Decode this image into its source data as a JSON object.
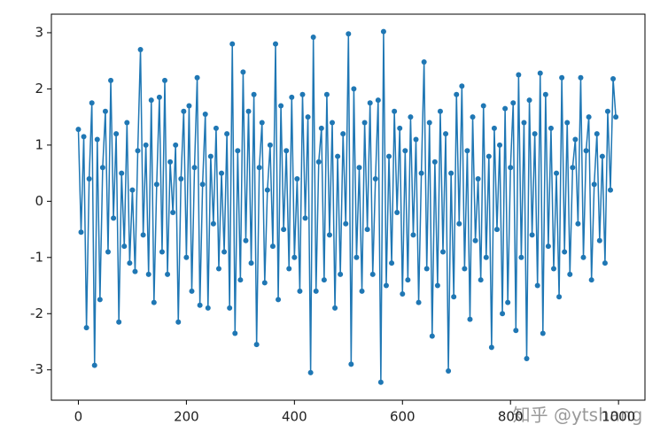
{
  "chart_data": {
    "type": "line",
    "x": [
      0,
      5,
      10,
      15,
      20,
      25,
      30,
      35,
      40,
      45,
      50,
      55,
      60,
      65,
      70,
      75,
      80,
      85,
      90,
      95,
      100,
      105,
      110,
      115,
      120,
      125,
      130,
      135,
      140,
      145,
      150,
      155,
      160,
      165,
      170,
      175,
      180,
      185,
      190,
      195,
      200,
      205,
      210,
      215,
      220,
      225,
      230,
      235,
      240,
      245,
      250,
      255,
      260,
      265,
      270,
      275,
      280,
      285,
      290,
      295,
      300,
      305,
      310,
      315,
      320,
      325,
      330,
      335,
      340,
      345,
      350,
      355,
      360,
      365,
      370,
      375,
      380,
      385,
      390,
      395,
      400,
      405,
      410,
      415,
      420,
      425,
      430,
      435,
      440,
      445,
      450,
      455,
      460,
      465,
      470,
      475,
      480,
      485,
      490,
      495,
      500,
      505,
      510,
      515,
      520,
      525,
      530,
      535,
      540,
      545,
      550,
      555,
      560,
      565,
      570,
      575,
      580,
      585,
      590,
      595,
      600,
      605,
      610,
      615,
      620,
      625,
      630,
      635,
      640,
      645,
      650,
      655,
      660,
      665,
      670,
      675,
      680,
      685,
      690,
      695,
      700,
      705,
      710,
      715,
      720,
      725,
      730,
      735,
      740,
      745,
      750,
      755,
      760,
      765,
      770,
      775,
      780,
      785,
      790,
      795,
      800,
      805,
      810,
      815,
      820,
      825,
      830,
      835,
      840,
      845,
      850,
      855,
      860,
      865,
      870,
      875,
      880,
      885,
      890,
      895,
      900,
      905,
      910,
      915,
      920,
      925,
      930,
      935,
      940,
      945,
      950,
      955,
      960,
      965,
      970,
      975,
      980,
      985,
      990,
      995
    ],
    "series": [
      {
        "color": "#1f77b4",
        "values": [
          1.28,
          -0.55,
          1.15,
          -2.25,
          0.4,
          1.75,
          -2.92,
          1.1,
          -1.75,
          0.6,
          1.6,
          -0.9,
          2.15,
          -0.3,
          1.2,
          -2.15,
          0.5,
          -0.8,
          1.4,
          -1.1,
          0.2,
          -1.25,
          0.9,
          2.7,
          -0.6,
          1.0,
          -1.3,
          1.8,
          -1.8,
          0.3,
          1.85,
          -0.9,
          2.15,
          -1.3,
          0.7,
          -0.2,
          1.0,
          -2.15,
          0.4,
          1.6,
          -1.0,
          1.7,
          -1.6,
          0.6,
          2.2,
          -1.85,
          0.3,
          1.55,
          -1.9,
          0.8,
          -0.4,
          1.3,
          -1.2,
          0.5,
          -0.9,
          1.2,
          -1.9,
          2.8,
          -2.35,
          0.9,
          -1.4,
          2.3,
          -0.7,
          1.6,
          -1.1,
          1.9,
          -2.55,
          0.6,
          1.4,
          -1.45,
          0.2,
          1.0,
          -0.8,
          2.8,
          -1.75,
          1.7,
          -0.5,
          0.9,
          -1.2,
          1.85,
          -1.0,
          0.4,
          -1.6,
          1.9,
          -0.3,
          1.5,
          -3.05,
          2.92,
          -1.6,
          0.7,
          1.3,
          -1.4,
          1.9,
          -0.6,
          1.4,
          -1.9,
          0.8,
          -1.3,
          1.2,
          -0.4,
          2.98,
          -2.9,
          2.0,
          -1.0,
          0.6,
          -1.6,
          1.4,
          -0.5,
          1.75,
          -1.3,
          0.4,
          1.8,
          -3.22,
          3.02,
          -1.5,
          0.8,
          -1.1,
          1.6,
          -0.2,
          1.3,
          -1.65,
          0.9,
          -1.4,
          1.5,
          -0.6,
          1.1,
          -1.8,
          0.5,
          2.48,
          -1.2,
          1.4,
          -2.4,
          0.7,
          -1.5,
          1.6,
          -0.9,
          1.2,
          -3.02,
          0.5,
          -1.7,
          1.9,
          -0.4,
          2.05,
          -1.2,
          0.9,
          -2.1,
          1.5,
          -0.7,
          0.4,
          -1.4,
          1.7,
          -1.0,
          0.8,
          -2.6,
          1.3,
          -0.5,
          1.0,
          -2.0,
          1.65,
          -1.8,
          0.6,
          1.75,
          -2.3,
          2.25,
          -1.0,
          1.4,
          -2.8,
          1.8,
          -0.6,
          1.2,
          -1.5,
          2.28,
          -2.35,
          1.9,
          -0.8,
          1.3,
          -1.2,
          0.5,
          -1.7,
          2.2,
          -0.9,
          1.4,
          -1.3,
          0.6,
          1.1,
          -0.4,
          2.2,
          -1.0,
          0.9,
          1.5,
          -1.4,
          0.3,
          1.2,
          -0.7,
          0.8,
          -1.1,
          1.6,
          0.2,
          2.18,
          1.5
        ]
      }
    ],
    "xlim": [
      -49.95,
      1048.95
    ],
    "ylim": [
      -3.54,
      3.33
    ],
    "xticks": [
      0,
      200,
      400,
      600,
      800,
      1000
    ],
    "yticks": [
      -3,
      -2,
      -1,
      0,
      1,
      2,
      3
    ],
    "marker": "o"
  },
  "watermark": "知乎 @ytshang"
}
